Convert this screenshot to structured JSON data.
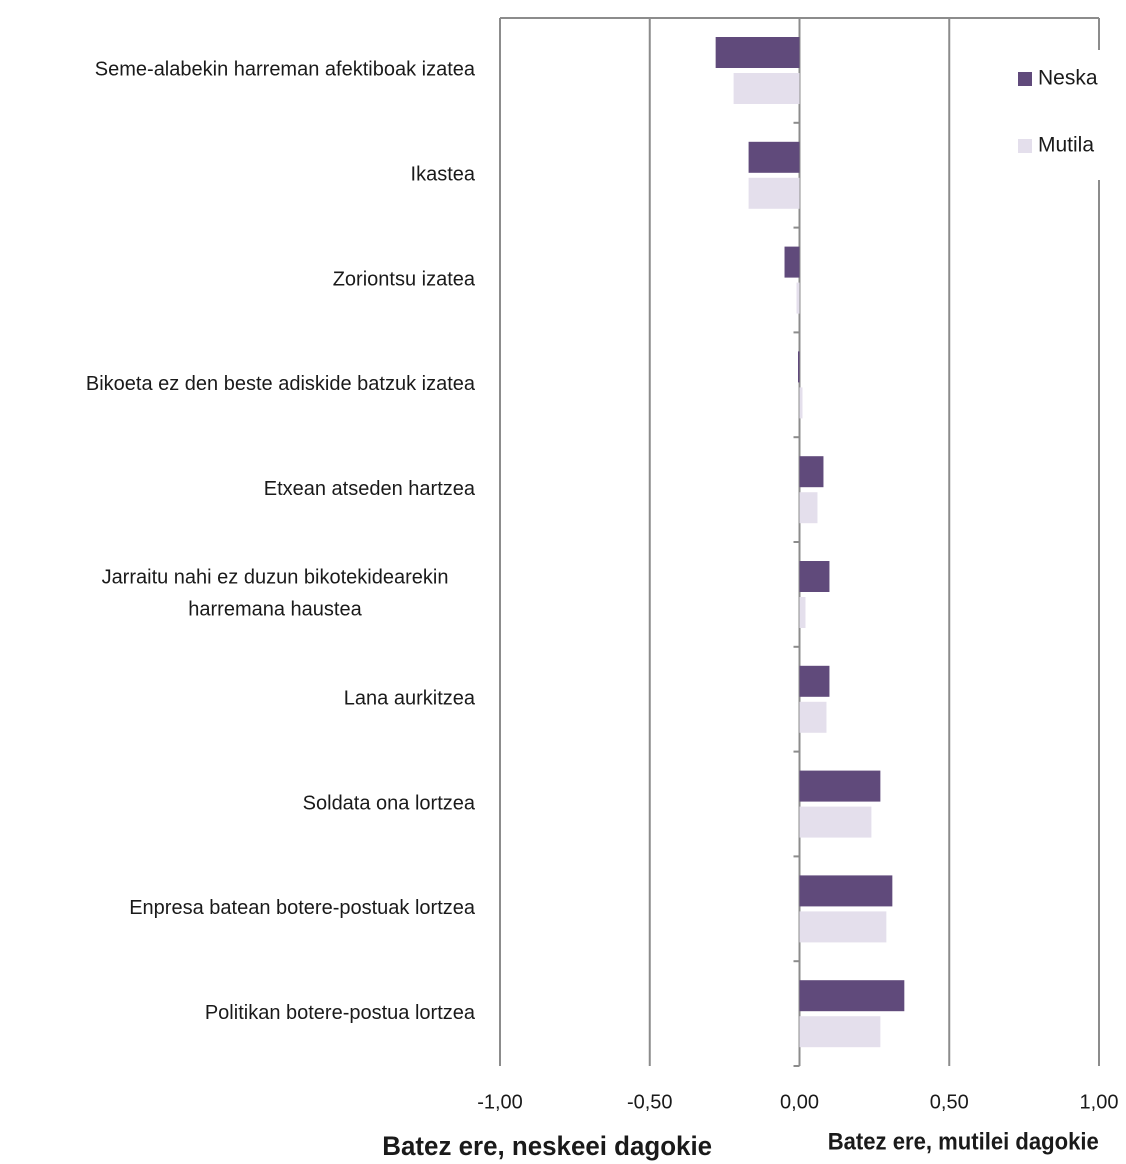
{
  "chart_data": {
    "type": "bar",
    "orientation": "horizontal",
    "categories": [
      "Seme-alabekin harreman afektiboak izatea",
      "Ikastea",
      "Zoriontsu izatea",
      "Bikoeta ez den beste adiskide batzuk izatea",
      "Etxean atseden hartzea",
      "Jarraitu nahi ez duzun bikotekidearekin harremana haustea",
      "Lana aurkitzea",
      "Soldata ona lortzea",
      "Enpresa batean botere-postuak lortzea",
      "Politikan botere-postua lortzea"
    ],
    "category_lines": [
      [
        "Seme-alabekin harreman afektiboak izatea"
      ],
      [
        "Ikastea"
      ],
      [
        "Zoriontsu izatea"
      ],
      [
        "Bikoeta ez den beste adiskide batzuk izatea"
      ],
      [
        "Etxean atseden hartzea"
      ],
      [
        "Jarraitu nahi ez duzun bikotekidearekin",
        "harremana haustea"
      ],
      [
        "Lana aurkitzea"
      ],
      [
        "Soldata ona lortzea"
      ],
      [
        "Enpresa batean botere-postuak lortzea"
      ],
      [
        "Politikan botere-postua lortzea"
      ]
    ],
    "series": [
      {
        "name": "Neska",
        "color": "#604a7b",
        "values": [
          -0.28,
          -0.17,
          -0.05,
          -0.005,
          0.08,
          0.1,
          0.1,
          0.27,
          0.31,
          0.35
        ]
      },
      {
        "name": "Mutila",
        "color": "#e4dfec",
        "values": [
          -0.22,
          -0.17,
          -0.01,
          0.01,
          0.06,
          0.02,
          0.09,
          0.24,
          0.29,
          0.27
        ]
      }
    ],
    "xlim": [
      -1.0,
      1.0
    ],
    "xticks": [
      -1.0,
      -0.5,
      0.0,
      0.5,
      1.0
    ],
    "xtick_labels": [
      "-1,00",
      "-0,50",
      "0,00",
      "0,50",
      "1,00"
    ],
    "grid": true,
    "legend_position": "top-right",
    "annotations": {
      "left": "Batez ere, neskeei dagokie",
      "right": "Batez ere, mutilei dagokie"
    }
  }
}
